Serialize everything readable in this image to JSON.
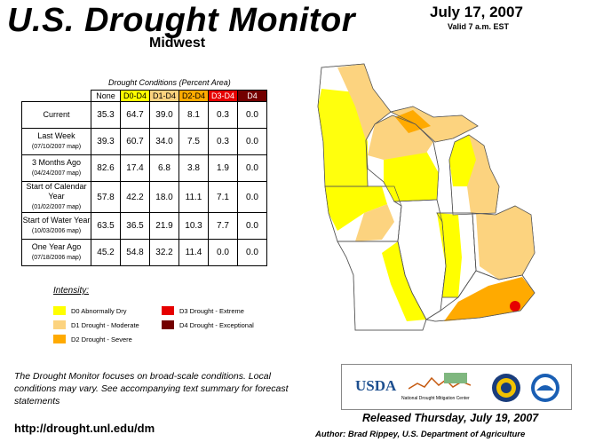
{
  "header": {
    "title": "U.S. Drought Monitor",
    "region": "Midwest",
    "date": "July 17, 2007",
    "valid": "Valid 7 a.m. EST"
  },
  "table": {
    "caption": "Drought Conditions (Percent Area)",
    "columns": [
      "None",
      "D0-D4",
      "D1-D4",
      "D2-D4",
      "D3-D4",
      "D4"
    ],
    "column_colors": [
      "#ffffff",
      "#ffff00",
      "#fcd37f",
      "#ffaa00",
      "#e60000",
      "#730000"
    ],
    "column_text_colors": [
      "#000000",
      "#000000",
      "#000000",
      "#000000",
      "#ffffff",
      "#ffffff"
    ],
    "rows": [
      {
        "label": "Current",
        "sub": "",
        "values": [
          "35.3",
          "64.7",
          "39.0",
          "8.1",
          "0.3",
          "0.0"
        ]
      },
      {
        "label": "Last Week",
        "sub": "(07/10/2007 map)",
        "values": [
          "39.3",
          "60.7",
          "34.0",
          "7.5",
          "0.3",
          "0.0"
        ]
      },
      {
        "label": "3 Months Ago",
        "sub": "(04/24/2007 map)",
        "values": [
          "82.6",
          "17.4",
          "6.8",
          "3.8",
          "1.9",
          "0.0"
        ]
      },
      {
        "label": "Start of Calendar Year",
        "sub": "(01/02/2007 map)",
        "values": [
          "57.8",
          "42.2",
          "18.0",
          "11.1",
          "7.1",
          "0.0"
        ]
      },
      {
        "label": "Start of Water Year",
        "sub": "(10/03/2006 map)",
        "values": [
          "63.5",
          "36.5",
          "21.9",
          "10.3",
          "7.7",
          "0.0"
        ]
      },
      {
        "label": "One Year Ago",
        "sub": "(07/18/2006 map)",
        "values": [
          "45.2",
          "54.8",
          "32.2",
          "11.4",
          "0.0",
          "0.0"
        ]
      }
    ]
  },
  "legend": {
    "title": "Intensity:",
    "items": [
      {
        "label": "D0 Abnormally Dry",
        "color": "#ffff00"
      },
      {
        "label": "D1 Drought - Moderate",
        "color": "#fcd37f"
      },
      {
        "label": "D2 Drought - Severe",
        "color": "#ffaa00"
      },
      {
        "label": "D3 Drought - Extreme",
        "color": "#e60000"
      },
      {
        "label": "D4 Drought - Exceptional",
        "color": "#730000"
      }
    ]
  },
  "footer": {
    "note": "The Drought Monitor focuses on broad-scale conditions. Local conditions may vary. See accompanying text summary for forecast statements",
    "url": "http://drought.unl.edu/dm",
    "released": "Released Thursday, July 19, 2007",
    "author": "Author: Brad Rippey, U.S. Department of Agriculture"
  },
  "logos": {
    "usda": "USDA",
    "ndmc": "National Drought Mitigation Center"
  }
}
